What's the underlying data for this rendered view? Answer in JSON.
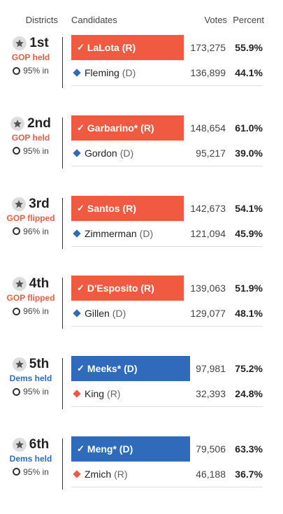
{
  "header": {
    "districts": "Districts",
    "candidates": "Candidates",
    "votes": "Votes",
    "percent": "Percent"
  },
  "colors": {
    "rep": "#f05a40",
    "dem": "#2f6abb"
  },
  "races": [
    {
      "district": "1st",
      "status": "GOP held",
      "status_color": "#f05a40",
      "reporting": "95% in",
      "winner": {
        "name": "LaLota",
        "party": "(R)",
        "votes": "173,275",
        "pct": "55.9%",
        "color": "#f05a40",
        "width": 161
      },
      "loser": {
        "name": "Fleming",
        "party": "(D)",
        "votes": "136,899",
        "pct": "44.1%",
        "color": "#2f6abb"
      }
    },
    {
      "district": "2nd",
      "status": "GOP held",
      "status_color": "#f05a40",
      "reporting": "95% in",
      "winner": {
        "name": "Garbarino*",
        "party": "(R)",
        "votes": "148,654",
        "pct": "61.0%",
        "color": "#f05a40",
        "width": 161
      },
      "loser": {
        "name": "Gordon",
        "party": "(D)",
        "votes": "95,217",
        "pct": "39.0%",
        "color": "#2f6abb"
      }
    },
    {
      "district": "3rd",
      "status": "GOP flipped",
      "status_color": "#f05a40",
      "reporting": "96% in",
      "winner": {
        "name": "Santos",
        "party": "(R)",
        "votes": "142,673",
        "pct": "54.1%",
        "color": "#f05a40",
        "width": 161
      },
      "loser": {
        "name": "Zimmerman",
        "party": "(D)",
        "votes": "121,094",
        "pct": "45.9%",
        "color": "#2f6abb"
      }
    },
    {
      "district": "4th",
      "status": "GOP flipped",
      "status_color": "#f05a40",
      "reporting": "96% in",
      "winner": {
        "name": "D'Esposito",
        "party": "(R)",
        "votes": "139,063",
        "pct": "51.9%",
        "color": "#f05a40",
        "width": 161
      },
      "loser": {
        "name": "Gillen",
        "party": "(D)",
        "votes": "129,077",
        "pct": "48.1%",
        "color": "#2f6abb"
      }
    },
    {
      "district": "5th",
      "status": "Dems held",
      "status_color": "#2f6abb",
      "reporting": "95% in",
      "winner": {
        "name": "Meeks*",
        "party": "(D)",
        "votes": "97,981",
        "pct": "75.2%",
        "color": "#2f6abb",
        "width": 170
      },
      "loser": {
        "name": "King",
        "party": "(R)",
        "votes": "32,393",
        "pct": "24.8%",
        "color": "#f05a40"
      }
    },
    {
      "district": "6th",
      "status": "Dems held",
      "status_color": "#2f6abb",
      "reporting": "95% in",
      "winner": {
        "name": "Meng*",
        "party": "(D)",
        "votes": "79,506",
        "pct": "63.3%",
        "color": "#2f6abb",
        "width": 170
      },
      "loser": {
        "name": "Zmich",
        "party": "(R)",
        "votes": "46,188",
        "pct": "36.7%",
        "color": "#f05a40"
      }
    }
  ]
}
